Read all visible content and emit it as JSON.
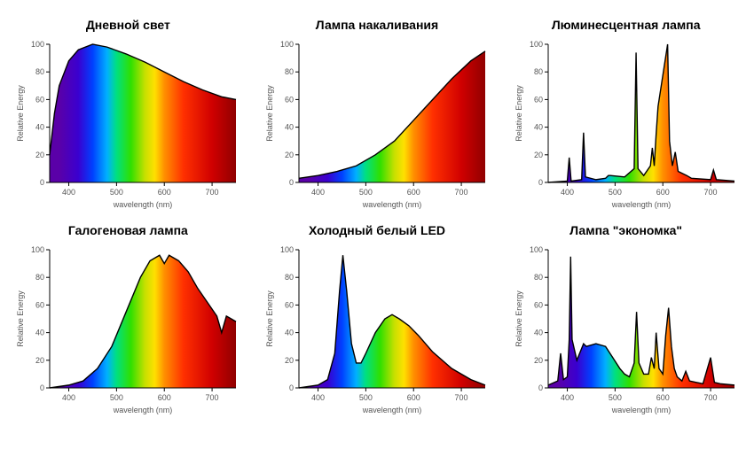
{
  "chart_common": {
    "ylabel": "Relative Energy",
    "xlabel": "wavelength (nm)",
    "xlim": [
      360,
      750
    ],
    "ylim": [
      0,
      100
    ],
    "xticks": [
      400,
      500,
      600,
      700
    ],
    "yticks": [
      0,
      20,
      40,
      60,
      80,
      100
    ],
    "axis_color": "#000000",
    "label_color": "#555555",
    "title_fontsize": 14,
    "label_fontsize": 9,
    "tick_fontsize": 9,
    "background": "#ffffff",
    "curve_stroke": "#000000",
    "curve_stroke_width": 1.4,
    "spectrum_stops": [
      {
        "nm": 380,
        "color": "#5a00a8"
      },
      {
        "nm": 420,
        "color": "#3a00d0"
      },
      {
        "nm": 450,
        "color": "#0040ff"
      },
      {
        "nm": 480,
        "color": "#00b0ff"
      },
      {
        "nm": 500,
        "color": "#00e080"
      },
      {
        "nm": 530,
        "color": "#30e000"
      },
      {
        "nm": 560,
        "color": "#c8e000"
      },
      {
        "nm": 580,
        "color": "#ffe000"
      },
      {
        "nm": 600,
        "color": "#ff9000"
      },
      {
        "nm": 640,
        "color": "#ff3000"
      },
      {
        "nm": 700,
        "color": "#d00000"
      },
      {
        "nm": 750,
        "color": "#900000"
      }
    ]
  },
  "panels": [
    {
      "key": "daylight",
      "title": "Дневной свет",
      "type": "area-spectrum",
      "data": [
        [
          360,
          20
        ],
        [
          370,
          50
        ],
        [
          380,
          70
        ],
        [
          400,
          88
        ],
        [
          420,
          96
        ],
        [
          450,
          100
        ],
        [
          480,
          98
        ],
        [
          520,
          93
        ],
        [
          560,
          87
        ],
        [
          600,
          80
        ],
        [
          640,
          73
        ],
        [
          680,
          67
        ],
        [
          720,
          62
        ],
        [
          750,
          60
        ]
      ]
    },
    {
      "key": "incandescent",
      "title": "Лампа накаливания",
      "type": "area-spectrum",
      "data": [
        [
          360,
          3
        ],
        [
          400,
          5
        ],
        [
          440,
          8
        ],
        [
          480,
          12
        ],
        [
          520,
          20
        ],
        [
          560,
          30
        ],
        [
          600,
          45
        ],
        [
          640,
          60
        ],
        [
          680,
          75
        ],
        [
          720,
          88
        ],
        [
          750,
          95
        ]
      ]
    },
    {
      "key": "fluorescent",
      "title": "Люминесцентная лампа",
      "type": "area-spectrum",
      "data": [
        [
          360,
          0
        ],
        [
          400,
          1
        ],
        [
          404,
          18
        ],
        [
          408,
          1
        ],
        [
          430,
          2
        ],
        [
          434,
          36
        ],
        [
          438,
          4
        ],
        [
          460,
          2
        ],
        [
          480,
          3
        ],
        [
          486,
          5
        ],
        [
          490,
          5
        ],
        [
          520,
          4
        ],
        [
          540,
          10
        ],
        [
          544,
          94
        ],
        [
          548,
          10
        ],
        [
          560,
          5
        ],
        [
          574,
          12
        ],
        [
          578,
          25
        ],
        [
          582,
          12
        ],
        [
          586,
          35
        ],
        [
          590,
          55
        ],
        [
          610,
          100
        ],
        [
          614,
          30
        ],
        [
          620,
          12
        ],
        [
          626,
          22
        ],
        [
          632,
          8
        ],
        [
          650,
          5
        ],
        [
          660,
          3
        ],
        [
          700,
          2
        ],
        [
          706,
          9
        ],
        [
          712,
          2
        ],
        [
          750,
          1
        ]
      ]
    },
    {
      "key": "halogen",
      "title": "Галогеновая лампа",
      "type": "area-spectrum",
      "data": [
        [
          360,
          0
        ],
        [
          400,
          2
        ],
        [
          430,
          5
        ],
        [
          460,
          14
        ],
        [
          490,
          30
        ],
        [
          520,
          55
        ],
        [
          550,
          80
        ],
        [
          570,
          92
        ],
        [
          590,
          96
        ],
        [
          600,
          90
        ],
        [
          610,
          96
        ],
        [
          630,
          92
        ],
        [
          650,
          84
        ],
        [
          670,
          72
        ],
        [
          690,
          62
        ],
        [
          710,
          52
        ],
        [
          720,
          40
        ],
        [
          730,
          52
        ],
        [
          740,
          50
        ],
        [
          750,
          48
        ]
      ]
    },
    {
      "key": "coldled",
      "title": "Холодный белый LED",
      "type": "area-spectrum",
      "data": [
        [
          360,
          0
        ],
        [
          400,
          2
        ],
        [
          420,
          6
        ],
        [
          435,
          25
        ],
        [
          445,
          70
        ],
        [
          452,
          96
        ],
        [
          460,
          70
        ],
        [
          470,
          32
        ],
        [
          480,
          18
        ],
        [
          490,
          18
        ],
        [
          500,
          25
        ],
        [
          520,
          40
        ],
        [
          540,
          50
        ],
        [
          555,
          53
        ],
        [
          570,
          50
        ],
        [
          590,
          45
        ],
        [
          610,
          38
        ],
        [
          640,
          26
        ],
        [
          680,
          14
        ],
        [
          720,
          6
        ],
        [
          750,
          2
        ]
      ]
    },
    {
      "key": "economy",
      "title": "Лампа \"экономка\"",
      "type": "area-spectrum",
      "data": [
        [
          360,
          2
        ],
        [
          380,
          5
        ],
        [
          386,
          25
        ],
        [
          392,
          6
        ],
        [
          400,
          8
        ],
        [
          404,
          35
        ],
        [
          407,
          95
        ],
        [
          410,
          35
        ],
        [
          420,
          20
        ],
        [
          434,
          32
        ],
        [
          440,
          30
        ],
        [
          460,
          32
        ],
        [
          480,
          30
        ],
        [
          495,
          22
        ],
        [
          510,
          14
        ],
        [
          520,
          10
        ],
        [
          530,
          8
        ],
        [
          540,
          18
        ],
        [
          545,
          55
        ],
        [
          550,
          18
        ],
        [
          560,
          10
        ],
        [
          570,
          10
        ],
        [
          576,
          22
        ],
        [
          582,
          14
        ],
        [
          586,
          40
        ],
        [
          592,
          14
        ],
        [
          600,
          10
        ],
        [
          606,
          38
        ],
        [
          612,
          58
        ],
        [
          618,
          30
        ],
        [
          624,
          14
        ],
        [
          630,
          8
        ],
        [
          640,
          5
        ],
        [
          648,
          12
        ],
        [
          656,
          5
        ],
        [
          670,
          4
        ],
        [
          684,
          3
        ],
        [
          700,
          22
        ],
        [
          708,
          4
        ],
        [
          720,
          3
        ],
        [
          750,
          2
        ]
      ]
    }
  ]
}
